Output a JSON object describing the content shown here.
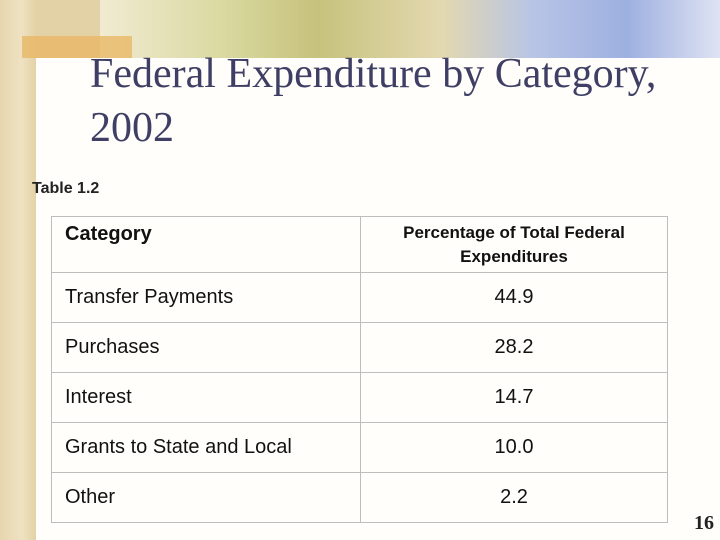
{
  "header": {
    "title_line1": "Federal Expenditure by Category,",
    "title_line2": "2002"
  },
  "table": {
    "label": "Table 1.2",
    "columns": [
      "Category",
      "Percentage of Total Federal Expenditures"
    ],
    "rows": [
      [
        "Transfer Payments",
        "44.9"
      ],
      [
        "Purchases",
        "28.2"
      ],
      [
        "Interest",
        "14.7"
      ],
      [
        "Grants to State and Local",
        "10.0"
      ],
      [
        "Other",
        "2.2"
      ]
    ]
  },
  "footer": {
    "page_number": "16"
  }
}
